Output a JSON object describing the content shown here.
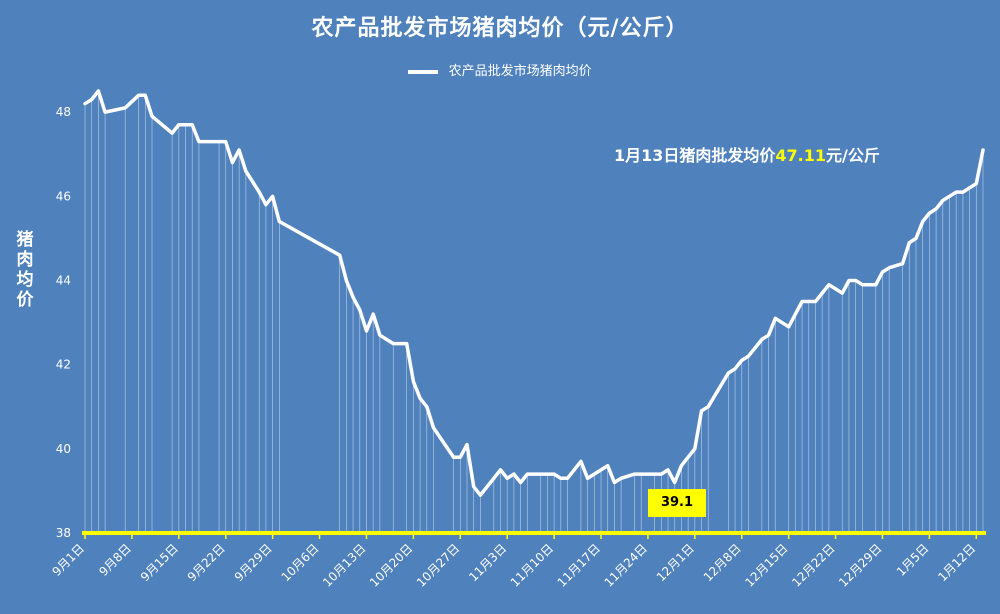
{
  "title": "农产品批发市场猪肉均价（元/公斤）",
  "legend_label": "农产品批发市场猪肉均价",
  "ylabel": "猪肉均价",
  "annotation": {
    "prefix": "1月13日猪肉批发均价",
    "value": "47.11",
    "suffix": "元/公斤"
  },
  "min_label": "39.1",
  "colors": {
    "background": "#4f81bd",
    "line": "#ffffff",
    "axis": "#ffff00",
    "highlight": "#ffff00"
  },
  "chart_data": {
    "type": "line",
    "title": "农产品批发市场猪肉均价（元/公斤）",
    "ylabel": "猪肉均价",
    "ylim": [
      38,
      49
    ],
    "yticks": [
      38,
      40,
      42,
      44,
      46,
      48
    ],
    "xlim": [
      0,
      134
    ],
    "xticks": [
      {
        "label": "9月1日",
        "x": 0
      },
      {
        "label": "9月8日",
        "x": 7
      },
      {
        "label": "9月15日",
        "x": 14
      },
      {
        "label": "9月22日",
        "x": 21
      },
      {
        "label": "9月29日",
        "x": 28
      },
      {
        "label": "10月6日",
        "x": 35
      },
      {
        "label": "10月13日",
        "x": 42
      },
      {
        "label": "10月20日",
        "x": 49
      },
      {
        "label": "10月27日",
        "x": 56
      },
      {
        "label": "11月3日",
        "x": 63
      },
      {
        "label": "11月10日",
        "x": 70
      },
      {
        "label": "11月17日",
        "x": 77
      },
      {
        "label": "11月24日",
        "x": 84
      },
      {
        "label": "12月1日",
        "x": 91
      },
      {
        "label": "12月8日",
        "x": 98
      },
      {
        "label": "12月15日",
        "x": 105
      },
      {
        "label": "12月22日",
        "x": 112
      },
      {
        "label": "12月29日",
        "x": 119
      },
      {
        "label": "1月5日",
        "x": 126
      },
      {
        "label": "1月12日",
        "x": 133
      }
    ],
    "grid": false,
    "legend_position": "top-center",
    "series": [
      {
        "name": "农产品批发市场猪肉均价",
        "x": [
          0,
          1,
          2,
          3,
          6,
          8,
          9,
          10,
          13,
          14,
          15,
          16,
          17,
          20,
          21,
          22,
          23,
          24,
          26,
          27,
          28,
          29,
          38,
          39,
          40,
          41,
          42,
          43,
          44,
          46,
          48,
          49,
          50,
          51,
          52,
          55,
          56,
          57,
          58,
          59,
          61,
          62,
          63,
          64,
          65,
          66,
          68,
          69,
          70,
          71,
          72,
          74,
          75,
          76,
          77,
          78,
          79,
          80,
          82,
          83,
          85,
          86,
          87,
          88,
          89,
          90,
          91,
          92,
          93,
          96,
          97,
          98,
          99,
          101,
          102,
          103,
          105,
          106,
          107,
          108,
          109,
          110,
          111,
          113,
          114,
          115,
          116,
          118,
          119,
          120,
          122,
          123,
          124,
          125,
          126,
          127,
          128,
          129,
          130,
          131,
          132,
          133,
          134
        ],
        "y": [
          48.2,
          48.3,
          48.5,
          48.0,
          48.1,
          48.4,
          48.4,
          47.9,
          47.5,
          47.7,
          47.7,
          47.7,
          47.3,
          47.3,
          47.3,
          46.8,
          47.1,
          46.6,
          46.1,
          45.8,
          46.0,
          45.4,
          44.6,
          44.0,
          43.6,
          43.3,
          42.8,
          43.2,
          42.7,
          42.5,
          42.5,
          41.6,
          41.2,
          41.0,
          40.5,
          39.8,
          39.8,
          40.1,
          39.1,
          38.9,
          39.3,
          39.5,
          39.3,
          39.4,
          39.2,
          39.4,
          39.4,
          39.4,
          39.4,
          39.3,
          39.3,
          39.7,
          39.3,
          39.4,
          39.5,
          39.6,
          39.2,
          39.3,
          39.4,
          39.4,
          39.4,
          39.4,
          39.5,
          39.2,
          39.6,
          39.8,
          40.0,
          40.9,
          41.0,
          41.8,
          41.9,
          42.1,
          42.2,
          42.6,
          42.7,
          43.1,
          42.9,
          43.2,
          43.5,
          43.5,
          43.5,
          43.7,
          43.9,
          43.7,
          44.0,
          44.0,
          43.9,
          43.9,
          44.2,
          44.3,
          44.4,
          44.9,
          45.0,
          45.4,
          45.6,
          45.7,
          45.9,
          46.0,
          46.1,
          46.1,
          46.2,
          46.3,
          47.1
        ]
      }
    ],
    "annotations": [
      {
        "text": "39.1",
        "x": 86,
        "y": 39.1
      },
      {
        "text": "1月13日猪肉批发均价47.11元/公斤",
        "x": 134,
        "y": 47.11
      }
    ]
  }
}
